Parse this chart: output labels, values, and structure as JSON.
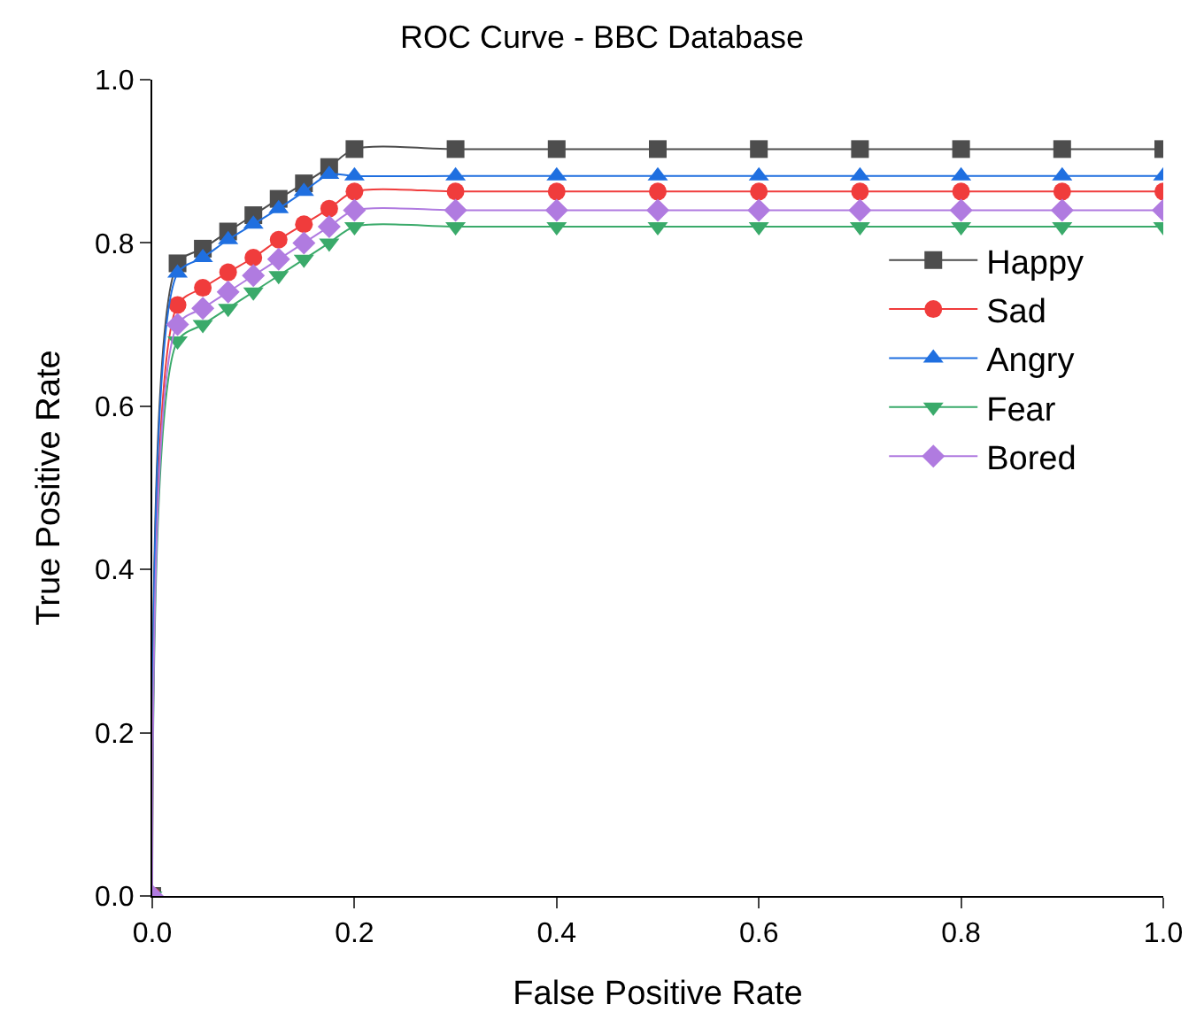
{
  "chart_data": {
    "type": "line",
    "title": "ROC Curve - BBC Database",
    "xlabel": "False Positive Rate",
    "ylabel": "True Positive Rate",
    "x": [
      0,
      0.025,
      0.05,
      0.075,
      0.1,
      0.125,
      0.15,
      0.175,
      0.2,
      0.3,
      0.4,
      0.5,
      0.6,
      0.7,
      0.8,
      0.9,
      1.0
    ],
    "series": [
      {
        "name": "Happy",
        "color": "#4d4d4d",
        "marker": "square",
        "values": [
          0,
          0.775,
          0.793,
          0.814,
          0.834,
          0.854,
          0.873,
          0.893,
          0.915,
          0.915,
          0.915,
          0.915,
          0.915,
          0.915,
          0.915,
          0.915,
          0.915
        ]
      },
      {
        "name": "Sad",
        "color": "#f03c3c",
        "marker": "circle",
        "values": [
          0,
          0.724,
          0.745,
          0.764,
          0.782,
          0.804,
          0.823,
          0.842,
          0.863,
          0.863,
          0.863,
          0.863,
          0.863,
          0.863,
          0.863,
          0.863,
          0.863
        ]
      },
      {
        "name": "Angry",
        "color": "#1f6fe0",
        "marker": "triangle",
        "values": [
          0,
          0.763,
          0.782,
          0.804,
          0.823,
          0.842,
          0.863,
          0.884,
          0.882,
          0.882,
          0.882,
          0.882,
          0.882,
          0.882,
          0.882,
          0.882,
          0.882
        ]
      },
      {
        "name": "Fear",
        "color": "#3aaa6a",
        "marker": "triangle-down",
        "values": [
          0,
          0.68,
          0.7,
          0.72,
          0.74,
          0.76,
          0.78,
          0.8,
          0.82,
          0.82,
          0.82,
          0.82,
          0.82,
          0.82,
          0.82,
          0.82,
          0.82
        ]
      },
      {
        "name": "Bored",
        "color": "#b07be0",
        "marker": "diamond",
        "values": [
          0,
          0.7,
          0.72,
          0.74,
          0.76,
          0.78,
          0.8,
          0.82,
          0.84,
          0.84,
          0.84,
          0.84,
          0.84,
          0.84,
          0.84,
          0.84,
          0.84
        ]
      }
    ],
    "xlim": [
      0,
      1.0
    ],
    "ylim": [
      0,
      1.0
    ],
    "xticks": [
      {
        "value": 0,
        "label": "0.0"
      },
      0.2,
      0.4,
      0.6,
      0.8,
      {
        "value": 1,
        "label": "1.0"
      }
    ],
    "yticks": [
      {
        "value": 0,
        "label": "0.0"
      },
      0.2,
      0.4,
      0.6,
      0.8,
      {
        "value": 1,
        "label": "1.0"
      }
    ],
    "grid": false,
    "legend": "right",
    "line_style": "solid"
  }
}
